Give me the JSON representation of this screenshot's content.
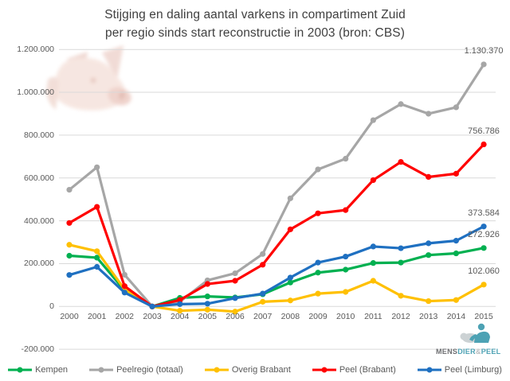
{
  "title": {
    "line1": "Stijging en daling aantal varkens in compartiment Zuid",
    "line2": "per regio sinds start reconstructie in 2003 (bron: CBS)"
  },
  "chart_data": {
    "type": "line",
    "title": "Stijging en daling aantal varkens in compartiment Zuid per regio sinds start reconstructie in 2003 (bron: CBS)",
    "x": [
      "2000",
      "2001",
      "2002",
      "2003",
      "2004",
      "2005",
      "2006",
      "2007",
      "2008",
      "2009",
      "2010",
      "2011",
      "2012",
      "2013",
      "2014",
      "2015"
    ],
    "series": [
      {
        "name": "Kempen",
        "color": "#00B050",
        "end_label": "272.926",
        "values": [
          237000,
          228000,
          75000,
          0,
          40000,
          47000,
          42000,
          57000,
          112000,
          158000,
          172000,
          203000,
          205000,
          240000,
          248000,
          272926
        ]
      },
      {
        "name": "Peelregio (totaal)",
        "color": "#A6A6A6",
        "end_label": "1.130.370",
        "values": [
          545000,
          650000,
          148000,
          0,
          22000,
          122000,
          155000,
          245000,
          505000,
          640000,
          690000,
          870000,
          945000,
          900000,
          930000,
          1130370
        ]
      },
      {
        "name": "Overig Brabant",
        "color": "#FFC000",
        "end_label": "102.060",
        "values": [
          288000,
          258000,
          80000,
          0,
          -20000,
          -15000,
          -24000,
          22000,
          28000,
          60000,
          68000,
          120000,
          50000,
          25000,
          30000,
          102060
        ]
      },
      {
        "name": "Peel (Brabant)",
        "color": "#FF0000",
        "end_label": "756.786",
        "values": [
          390000,
          465000,
          95000,
          0,
          30000,
          105000,
          120000,
          195000,
          360000,
          435000,
          450000,
          590000,
          675000,
          605000,
          620000,
          756786
        ]
      },
      {
        "name": "Peel (Limburg)",
        "color": "#1F70C1",
        "end_label": "373.584",
        "values": [
          147000,
          185000,
          65000,
          0,
          11000,
          13000,
          39000,
          60000,
          135000,
          205000,
          233000,
          280000,
          272000,
          295000,
          307000,
          373584
        ]
      }
    ],
    "y_ticks": [
      {
        "label": "1.200.000",
        "value": 1200000
      },
      {
        "label": "1.000.000",
        "value": 1000000
      },
      {
        "label": "800.000",
        "value": 800000
      },
      {
        "label": "600.000",
        "value": 600000
      },
      {
        "label": "400.000",
        "value": 400000
      },
      {
        "label": "200.000",
        "value": 200000
      },
      {
        "label": "0",
        "value": 0
      },
      {
        "label": "-200.000",
        "value": -200000
      }
    ],
    "ylim": [
      -200000,
      1200000
    ],
    "grid": true,
    "gridline_color": "#d9d9d9",
    "legend_position": "bottom",
    "marker": "circle"
  },
  "logo": {
    "text_parts": [
      {
        "text": "MENS",
        "color": "#6d6e71"
      },
      {
        "text": "DIER",
        "color": "#4da2b4"
      },
      {
        "text": "&",
        "color": "#bcbec0"
      },
      {
        "text": "PEEL",
        "color": "#4da2b4"
      }
    ]
  }
}
